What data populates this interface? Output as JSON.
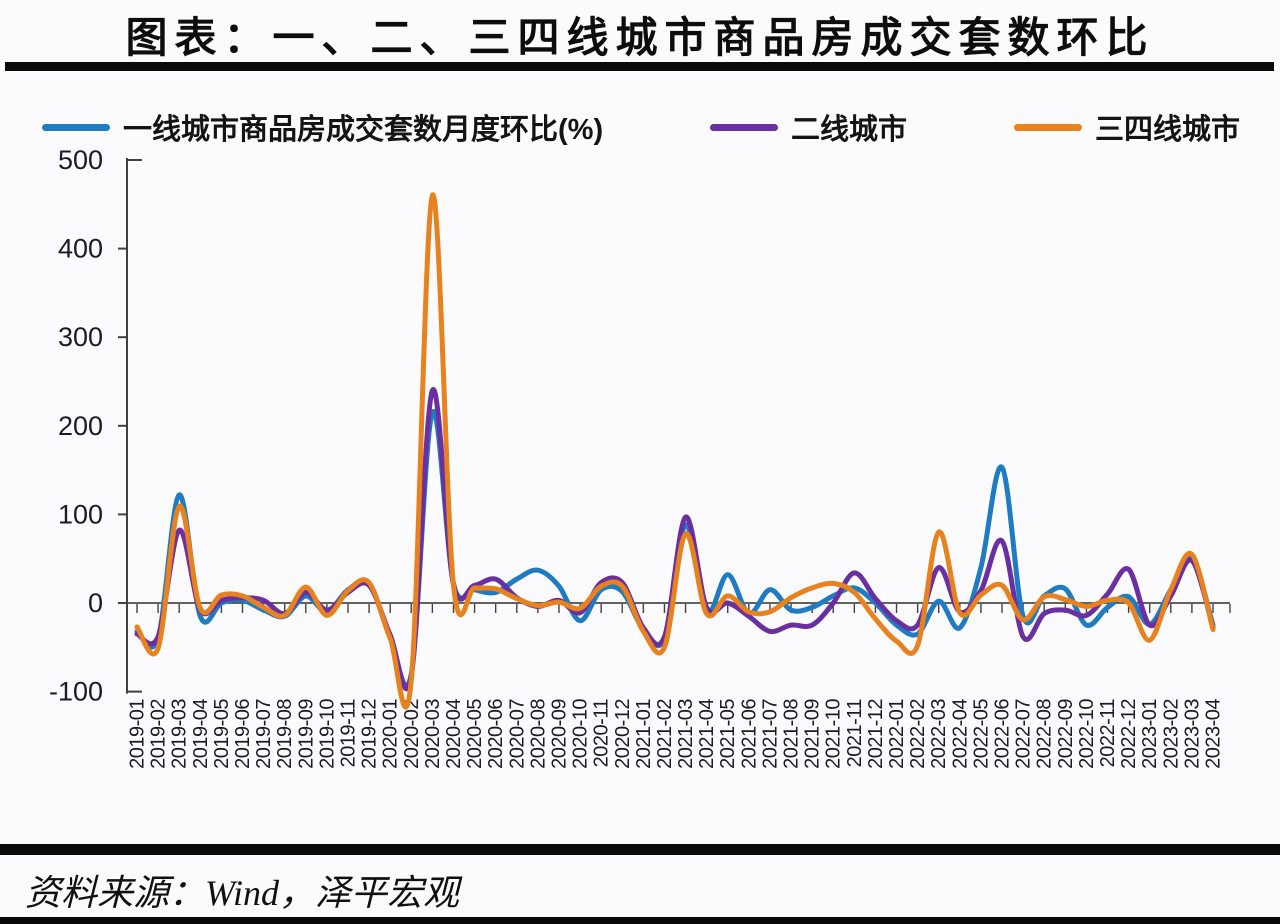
{
  "title": "图表：一、二、三四线城市商品房成交套数环比",
  "source": "资料来源：Wind，泽平宏观",
  "colors": {
    "tier1": "#1f7cc2",
    "tier2": "#6a2fa0",
    "tier3": "#e8821e",
    "axis": "#404040",
    "tick_label": "#1b1b28",
    "zero_line": "#4d4d4d",
    "separator_bar": "#0a0a0a",
    "background": "#fbfbfd"
  },
  "chart_data": {
    "type": "line",
    "smooth": true,
    "grid": false,
    "legend_position": "top",
    "ylim": [
      -100,
      500
    ],
    "yticks": [
      500,
      400,
      300,
      200,
      100,
      0,
      -100
    ],
    "x": [
      "2019-01",
      "2019-02",
      "2019-03",
      "2019-04",
      "2019-05",
      "2019-06",
      "2019-07",
      "2019-08",
      "2019-09",
      "2019-10",
      "2019-11",
      "2019-12",
      "2020-01",
      "2020-02",
      "2020-03",
      "2020-04",
      "2020-05",
      "2020-06",
      "2020-07",
      "2020-08",
      "2020-09",
      "2020-10",
      "2020-11",
      "2020-12",
      "2021-01",
      "2021-02",
      "2021-03",
      "2021-04",
      "2021-05",
      "2021-06",
      "2021-07",
      "2021-08",
      "2021-09",
      "2021-10",
      "2021-11",
      "2021-12",
      "2022-01",
      "2022-02",
      "2022-03",
      "2022-04",
      "2022-05",
      "2022-06",
      "2022-07",
      "2022-08",
      "2022-09",
      "2022-10",
      "2022-11",
      "2022-12",
      "2023-01",
      "2023-02",
      "2023-03",
      "2023-04"
    ],
    "series": [
      {
        "name": "一线城市商品房成交套数月度环比(%)",
        "color_key": "tier1",
        "values": [
          -32,
          -40,
          122,
          -15,
          0,
          3,
          -8,
          -15,
          8,
          -10,
          15,
          22,
          -38,
          -80,
          215,
          22,
          15,
          12,
          27,
          37,
          19,
          -20,
          15,
          13,
          -30,
          -40,
          88,
          -10,
          32,
          -12,
          15,
          -8,
          -5,
          8,
          17,
          0,
          -25,
          -35,
          2,
          -28,
          40,
          153,
          -15,
          8,
          16,
          -25,
          -5,
          7,
          -24,
          15,
          50,
          -25
        ]
      },
      {
        "name": "二线城市",
        "color_key": "tier2",
        "values": [
          -35,
          -38,
          82,
          -8,
          3,
          6,
          3,
          -12,
          12,
          -8,
          12,
          20,
          -36,
          -82,
          240,
          21,
          20,
          27,
          6,
          -4,
          3,
          -11,
          23,
          23,
          -28,
          -38,
          97,
          -5,
          0,
          -15,
          -32,
          -25,
          -25,
          0,
          34,
          5,
          -20,
          -25,
          40,
          -10,
          14,
          70,
          -38,
          -12,
          -8,
          -14,
          10,
          38,
          -25,
          8,
          48,
          -28
        ]
      },
      {
        "name": "三四线城市",
        "color_key": "tier3",
        "values": [
          -27,
          -51,
          109,
          -6,
          9,
          8,
          -5,
          -14,
          18,
          -14,
          14,
          23,
          -40,
          -87,
          460,
          20,
          17,
          16,
          5,
          -3,
          1,
          -6,
          19,
          19,
          -32,
          -50,
          78,
          -12,
          8,
          -10,
          -10,
          6,
          17,
          22,
          12,
          -18,
          -43,
          -48,
          80,
          -11,
          9,
          20,
          -19,
          7,
          4,
          -4,
          3,
          0,
          -42,
          15,
          55,
          -30
        ]
      }
    ]
  }
}
